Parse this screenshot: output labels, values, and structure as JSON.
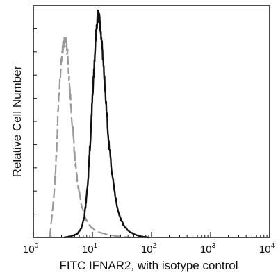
{
  "chart_data": {
    "type": "line",
    "title": "",
    "xlabel": "FITC  IFNAR2,  with isotype control",
    "ylabel": "Relative Cell Number",
    "x_scale": "log",
    "xlim": [
      1,
      10000
    ],
    "ylim": [
      0,
      100
    ],
    "grid": false,
    "legend": "none",
    "x_ticks": [
      {
        "base": "10",
        "exp": "0"
      },
      {
        "base": "10",
        "exp": "1"
      },
      {
        "base": "10",
        "exp": "2"
      },
      {
        "base": "10",
        "exp": "3"
      },
      {
        "base": "10",
        "exp": "4"
      }
    ],
    "series": [
      {
        "color": "#999999",
        "style": "dashed",
        "points": [
          [
            1.9,
            0
          ],
          [
            2.0,
            6
          ],
          [
            2.2,
            16
          ],
          [
            2.35,
            27
          ],
          [
            2.5,
            40
          ],
          [
            2.6,
            52
          ],
          [
            2.75,
            63
          ],
          [
            2.9,
            72
          ],
          [
            3.05,
            79
          ],
          [
            3.2,
            83
          ],
          [
            3.4,
            85
          ],
          [
            3.6,
            84
          ],
          [
            3.8,
            79
          ],
          [
            4.0,
            70
          ],
          [
            4.3,
            58
          ],
          [
            4.7,
            45
          ],
          [
            5.1,
            33
          ],
          [
            5.6,
            24
          ],
          [
            6.2,
            17
          ],
          [
            7.0,
            11
          ],
          [
            8.0,
            7
          ],
          [
            9.5,
            4.5
          ],
          [
            11,
            3
          ],
          [
            14,
            2
          ],
          [
            18,
            1.2
          ],
          [
            25,
            0.6
          ],
          [
            35,
            0.2
          ],
          [
            45,
            0
          ]
        ]
      },
      {
        "color": "#111111",
        "style": "solid",
        "points": [
          [
            3.3,
            0
          ],
          [
            4.3,
            0.5
          ],
          [
            5.5,
            1.5
          ],
          [
            6.5,
            4
          ],
          [
            7.3,
            9
          ],
          [
            8.0,
            18
          ],
          [
            8.7,
            30
          ],
          [
            9.3,
            44
          ],
          [
            10.0,
            60
          ],
          [
            10.8,
            76
          ],
          [
            11.6,
            89
          ],
          [
            12.3,
            96
          ],
          [
            13.0,
            95
          ],
          [
            13.8,
            89
          ],
          [
            14.8,
            80
          ],
          [
            16.0,
            68
          ],
          [
            17.5,
            53
          ],
          [
            19.5,
            38
          ],
          [
            22,
            25
          ],
          [
            25,
            16
          ],
          [
            29,
            9
          ],
          [
            34,
            5
          ],
          [
            42,
            2.5
          ],
          [
            55,
            1
          ],
          [
            70,
            0.3
          ],
          [
            90,
            0
          ]
        ]
      }
    ]
  }
}
